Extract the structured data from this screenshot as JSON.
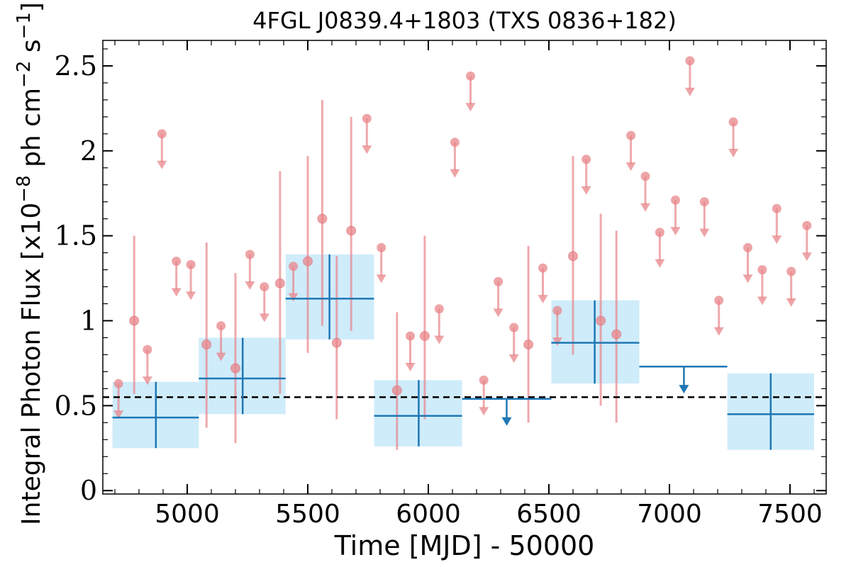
{
  "chart_data": {
    "type": "scatter",
    "title": "4FGL J0839.4+1803 (TXS 0836+182)",
    "xlabel": "Time [MJD] - 50000",
    "ylabel": {
      "prefix": "Integral Photon Flux [x10",
      "exp1": "−8",
      "mid": " ph cm",
      "exp2": "−2",
      "mid2": " s",
      "exp3": "−1",
      "suffix": "]"
    },
    "xlim": [
      4650,
      7650
    ],
    "ylim": [
      -0.02,
      2.65
    ],
    "xticks": [
      5000,
      5500,
      6000,
      6500,
      7000,
      7500
    ],
    "xtick_labels": [
      "5000",
      "5500",
      "6000",
      "6500",
      "7000",
      "7500"
    ],
    "yticks": [
      0,
      0.5,
      1,
      1.5,
      2,
      2.5
    ],
    "ytick_labels": [
      "0",
      "0.5",
      "1",
      "1.5",
      "2",
      "2.5"
    ],
    "grid": false,
    "colors": {
      "short_bins": "#e8858a",
      "long_bins": "#1f77b4",
      "long_bins_fill": "#bfe6fa",
      "mean_line": "#000000"
    },
    "mean_flux": 0.55,
    "short_bins": {
      "detections": [
        {
          "x": 4780,
          "y": 1.0,
          "ylo": 0.57,
          "yhi": 1.5
        },
        {
          "x": 5080,
          "y": 0.86,
          "ylo": 0.37,
          "yhi": 1.46
        },
        {
          "x": 5200,
          "y": 0.72,
          "ylo": 0.28,
          "yhi": 1.28
        },
        {
          "x": 5385,
          "y": 1.22,
          "ylo": 0.57,
          "yhi": 1.88
        },
        {
          "x": 5500,
          "y": 1.35,
          "ylo": 0.81,
          "yhi": 1.97
        },
        {
          "x": 5560,
          "y": 1.6,
          "ylo": 0.97,
          "yhi": 2.3
        },
        {
          "x": 5620,
          "y": 0.87,
          "ylo": 0.42,
          "yhi": 1.38
        },
        {
          "x": 5680,
          "y": 1.53,
          "ylo": 0.94,
          "yhi": 2.2
        },
        {
          "x": 5870,
          "y": 0.59,
          "ylo": 0.24,
          "yhi": 1.05
        },
        {
          "x": 5985,
          "y": 0.91,
          "ylo": 0.42,
          "yhi": 1.5
        },
        {
          "x": 6415,
          "y": 0.86,
          "ylo": 0.4,
          "yhi": 1.44
        },
        {
          "x": 6600,
          "y": 1.38,
          "ylo": 0.8,
          "yhi": 1.97
        },
        {
          "x": 6715,
          "y": 1.0,
          "ylo": 0.5,
          "yhi": 1.63
        },
        {
          "x": 6780,
          "y": 0.92,
          "ylo": 0.4,
          "yhi": 1.53
        }
      ],
      "upper_limits": [
        {
          "x": 4715,
          "y": 0.63
        },
        {
          "x": 4835,
          "y": 0.83
        },
        {
          "x": 4895,
          "y": 2.1
        },
        {
          "x": 4955,
          "y": 1.35
        },
        {
          "x": 5015,
          "y": 1.33
        },
        {
          "x": 5140,
          "y": 0.97
        },
        {
          "x": 5260,
          "y": 1.39
        },
        {
          "x": 5320,
          "y": 1.2
        },
        {
          "x": 5440,
          "y": 1.32
        },
        {
          "x": 5745,
          "y": 2.19
        },
        {
          "x": 5805,
          "y": 1.43
        },
        {
          "x": 5925,
          "y": 0.91
        },
        {
          "x": 6045,
          "y": 1.07
        },
        {
          "x": 6110,
          "y": 2.05
        },
        {
          "x": 6175,
          "y": 2.44
        },
        {
          "x": 6230,
          "y": 0.65
        },
        {
          "x": 6290,
          "y": 1.23
        },
        {
          "x": 6355,
          "y": 0.96
        },
        {
          "x": 6475,
          "y": 1.31
        },
        {
          "x": 6535,
          "y": 1.06
        },
        {
          "x": 6655,
          "y": 1.95
        },
        {
          "x": 6840,
          "y": 2.09
        },
        {
          "x": 6900,
          "y": 1.85
        },
        {
          "x": 6960,
          "y": 1.52
        },
        {
          "x": 7025,
          "y": 1.71
        },
        {
          "x": 7085,
          "y": 2.53
        },
        {
          "x": 7145,
          "y": 1.7
        },
        {
          "x": 7205,
          "y": 1.12
        },
        {
          "x": 7265,
          "y": 2.17
        },
        {
          "x": 7325,
          "y": 1.43
        },
        {
          "x": 7385,
          "y": 1.3
        },
        {
          "x": 7445,
          "y": 1.66
        },
        {
          "x": 7505,
          "y": 1.29
        },
        {
          "x": 7570,
          "y": 1.56
        }
      ]
    },
    "long_bins": {
      "detections": [
        {
          "x": 4870,
          "xlo": 4690,
          "xhi": 5048,
          "y": 0.43,
          "ylo": 0.25,
          "yhi": 0.64
        },
        {
          "x": 5230,
          "xlo": 5048,
          "xhi": 5408,
          "y": 0.66,
          "ylo": 0.45,
          "yhi": 0.9
        },
        {
          "x": 5590,
          "xlo": 5408,
          "xhi": 5775,
          "y": 1.13,
          "ylo": 0.89,
          "yhi": 1.39
        },
        {
          "x": 5960,
          "xlo": 5775,
          "xhi": 6140,
          "y": 0.44,
          "ylo": 0.26,
          "yhi": 0.65
        },
        {
          "x": 6690,
          "xlo": 6510,
          "xhi": 6875,
          "y": 0.87,
          "ylo": 0.63,
          "yhi": 1.12
        },
        {
          "x": 7420,
          "xlo": 7240,
          "xhi": 7600,
          "y": 0.45,
          "ylo": 0.24,
          "yhi": 0.69
        }
      ],
      "upper_limits": [
        {
          "x": 6325,
          "xlo": 6140,
          "xhi": 6510,
          "y": 0.54
        },
        {
          "x": 7060,
          "xlo": 6875,
          "xhi": 7240,
          "y": 0.73
        }
      ]
    }
  }
}
